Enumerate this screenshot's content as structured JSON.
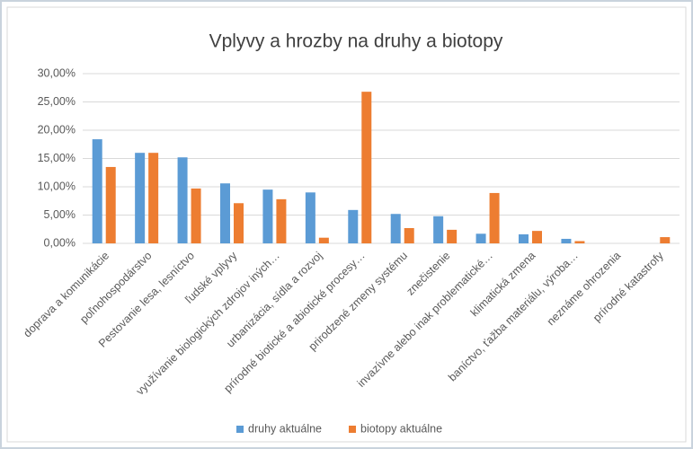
{
  "chart_data": {
    "type": "bar",
    "title": "Vplyvy a hrozby na druhy a biotopy",
    "categories": [
      "doprava a komunikácie",
      "poľnohospodárstvo",
      "Pestovanie lesa, lesníctvo",
      "ľudské vplyvy",
      "využívanie biologických zdrojov iných…",
      "urbanizácia, sídla a rozvoj",
      "prírodné biotické a abiotické procesy…",
      "prirodzené zmeny systému",
      "znečistenie",
      "invazívne alebo inak problematické…",
      "klimatická zmena",
      "baníctvo, ťažba materiálu, výroba…",
      "neznáme ohrozenia",
      "prírodné katastrofy"
    ],
    "series": [
      {
        "name": "druhy aktuálne",
        "color": "#5b9bd5",
        "values": [
          18.4,
          16.0,
          15.2,
          10.6,
          9.5,
          9.0,
          5.9,
          5.2,
          4.8,
          1.7,
          1.6,
          0.8,
          0,
          0
        ]
      },
      {
        "name": "biotopy aktuálne",
        "color": "#ed7d31",
        "values": [
          13.5,
          16.0,
          9.7,
          7.1,
          7.8,
          1.0,
          26.8,
          2.7,
          2.4,
          8.9,
          2.2,
          0.4,
          0,
          1.1
        ]
      }
    ],
    "ylim": [
      0,
      30
    ],
    "yticks": [
      {
        "value": 0,
        "label": "0,00%"
      },
      {
        "value": 5,
        "label": "5,00%"
      },
      {
        "value": 10,
        "label": "10,00%"
      },
      {
        "value": 15,
        "label": "15,00%"
      },
      {
        "value": 20,
        "label": "20,00%"
      },
      {
        "value": 25,
        "label": "25,00%"
      },
      {
        "value": 30,
        "label": "30,00%"
      }
    ],
    "grid": true,
    "legend": "bottom"
  }
}
